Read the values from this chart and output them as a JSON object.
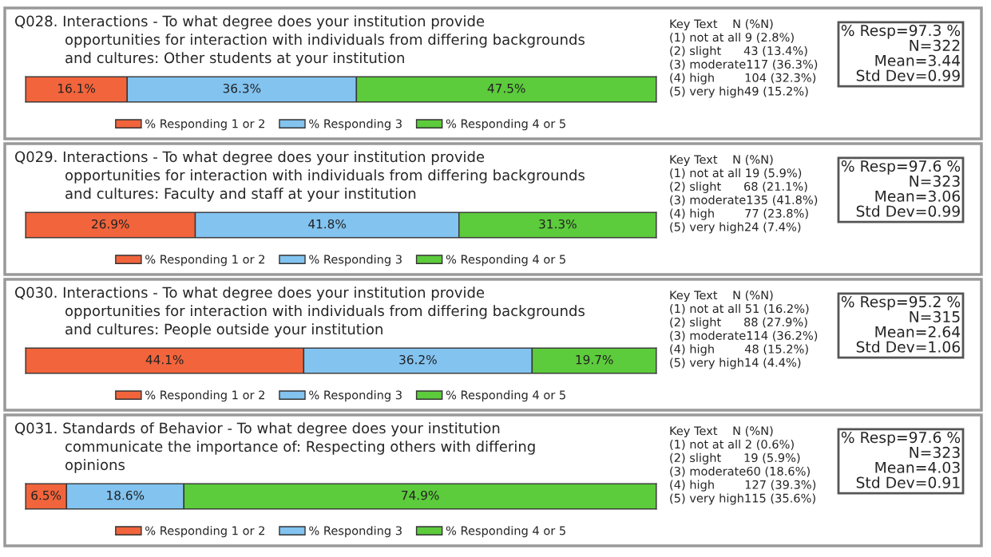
{
  "chart_data": [
    {
      "type": "bar",
      "orientation": "horizontal",
      "stacked": true,
      "legend": "bottom",
      "tick_labels": false,
      "title": "Q028. Interactions - To what degree does your institution provide\nopportunities for interaction with individuals from differing backgrounds\nand cultures: Other students at your institution",
      "categories": [
        null
      ],
      "series": [
        {
          "name": "% Responding 1 or 2",
          "color": "#f2643c",
          "values": [
            16.1
          ],
          "value_labels": [
            "16.1%"
          ]
        },
        {
          "name": "% Responding 3",
          "color": "#82c3f0",
          "values": [
            36.3
          ],
          "value_labels": [
            "36.3%"
          ]
        },
        {
          "name": "% Responding 4 or 5",
          "color": "#5ccb3c",
          "values": [
            47.5
          ],
          "value_labels": [
            "47.5%"
          ]
        }
      ],
      "annotations": [
        "Key Text    N (%N)\n(1) not at all 9 (2.8%)\n(2) slight      43 (13.4%)\n(3) moderate117 (36.3%)\n(4) high        104 (32.3%)\n(5) very high49 (15.2%)",
        "% Resp=97.3 %\nN=322\nMean=3.44\nStd Dev=0.99"
      ]
    },
    {
      "type": "bar",
      "orientation": "horizontal",
      "stacked": true,
      "legend": "bottom",
      "tick_labels": false,
      "title": "Q029. Interactions - To what degree does your institution provide\nopportunities for interaction with individuals from differing backgrounds\nand cultures: Faculty and staff at your institution",
      "categories": [
        null
      ],
      "series": [
        {
          "name": "% Responding 1 or 2",
          "color": "#f2643c",
          "values": [
            26.9
          ],
          "value_labels": [
            "26.9%"
          ]
        },
        {
          "name": "% Responding 3",
          "color": "#82c3f0",
          "values": [
            41.8
          ],
          "value_labels": [
            "41.8%"
          ]
        },
        {
          "name": "% Responding 4 or 5",
          "color": "#5ccb3c",
          "values": [
            31.3
          ],
          "value_labels": [
            "31.3%"
          ]
        }
      ],
      "annotations": [
        "Key Text    N (%N)\n(1) not at all 19 (5.9%)\n(2) slight      68 (21.1%)\n(3) moderate135 (41.8%)\n(4) high        77 (23.8%)\n(5) very high24 (7.4%)",
        "% Resp=97.6 %\nN=323\nMean=3.06\nStd Dev=0.99"
      ]
    },
    {
      "type": "bar",
      "orientation": "horizontal",
      "stacked": true,
      "legend": "bottom",
      "tick_labels": false,
      "title": "Q030. Interactions - To what degree does your institution provide\nopportunities for interaction with individuals from differing backgrounds\nand cultures: People outside your institution",
      "categories": [
        null
      ],
      "series": [
        {
          "name": "% Responding 1 or 2",
          "color": "#f2643c",
          "values": [
            44.1
          ],
          "value_labels": [
            "44.1%"
          ]
        },
        {
          "name": "% Responding 3",
          "color": "#82c3f0",
          "values": [
            36.2
          ],
          "value_labels": [
            "36.2%"
          ]
        },
        {
          "name": "% Responding 4 or 5",
          "color": "#5ccb3c",
          "values": [
            19.7
          ],
          "value_labels": [
            "19.7%"
          ]
        }
      ],
      "annotations": [
        "Key Text    N (%N)\n(1) not at all 51 (16.2%)\n(2) slight      88 (27.9%)\n(3) moderate114 (36.2%)\n(4) high        48 (15.2%)\n(5) very high14 (4.4%)",
        "% Resp=95.2 %\nN=315\nMean=2.64\nStd Dev=1.06"
      ]
    },
    {
      "type": "bar",
      "orientation": "horizontal",
      "stacked": true,
      "legend": "bottom",
      "tick_labels": false,
      "title": "Q031. Standards of Behavior - To what degree does your institution\ncommunicate the importance of: Respecting others with differing\nopinions",
      "categories": [
        null
      ],
      "series": [
        {
          "name": "% Responding 1 or 2",
          "color": "#f2643c",
          "values": [
            6.5
          ],
          "value_labels": [
            "6.5%"
          ]
        },
        {
          "name": "% Responding 3",
          "color": "#82c3f0",
          "values": [
            18.6
          ],
          "value_labels": [
            "18.6%"
          ]
        },
        {
          "name": "% Responding 4 or 5",
          "color": "#5ccb3c",
          "values": [
            74.9
          ],
          "value_labels": [
            "74.9%"
          ]
        }
      ],
      "annotations": [
        "Key Text    N (%N)\n(1) not at all 2 (0.6%)\n(2) slight      19 (5.9%)\n(3) moderate60 (18.6%)\n(4) high        127 (39.3%)\n(5) very high115 (35.6%)",
        "% Resp=97.6 %\nN=323\nMean=4.03\nStd Dev=0.91"
      ]
    }
  ]
}
